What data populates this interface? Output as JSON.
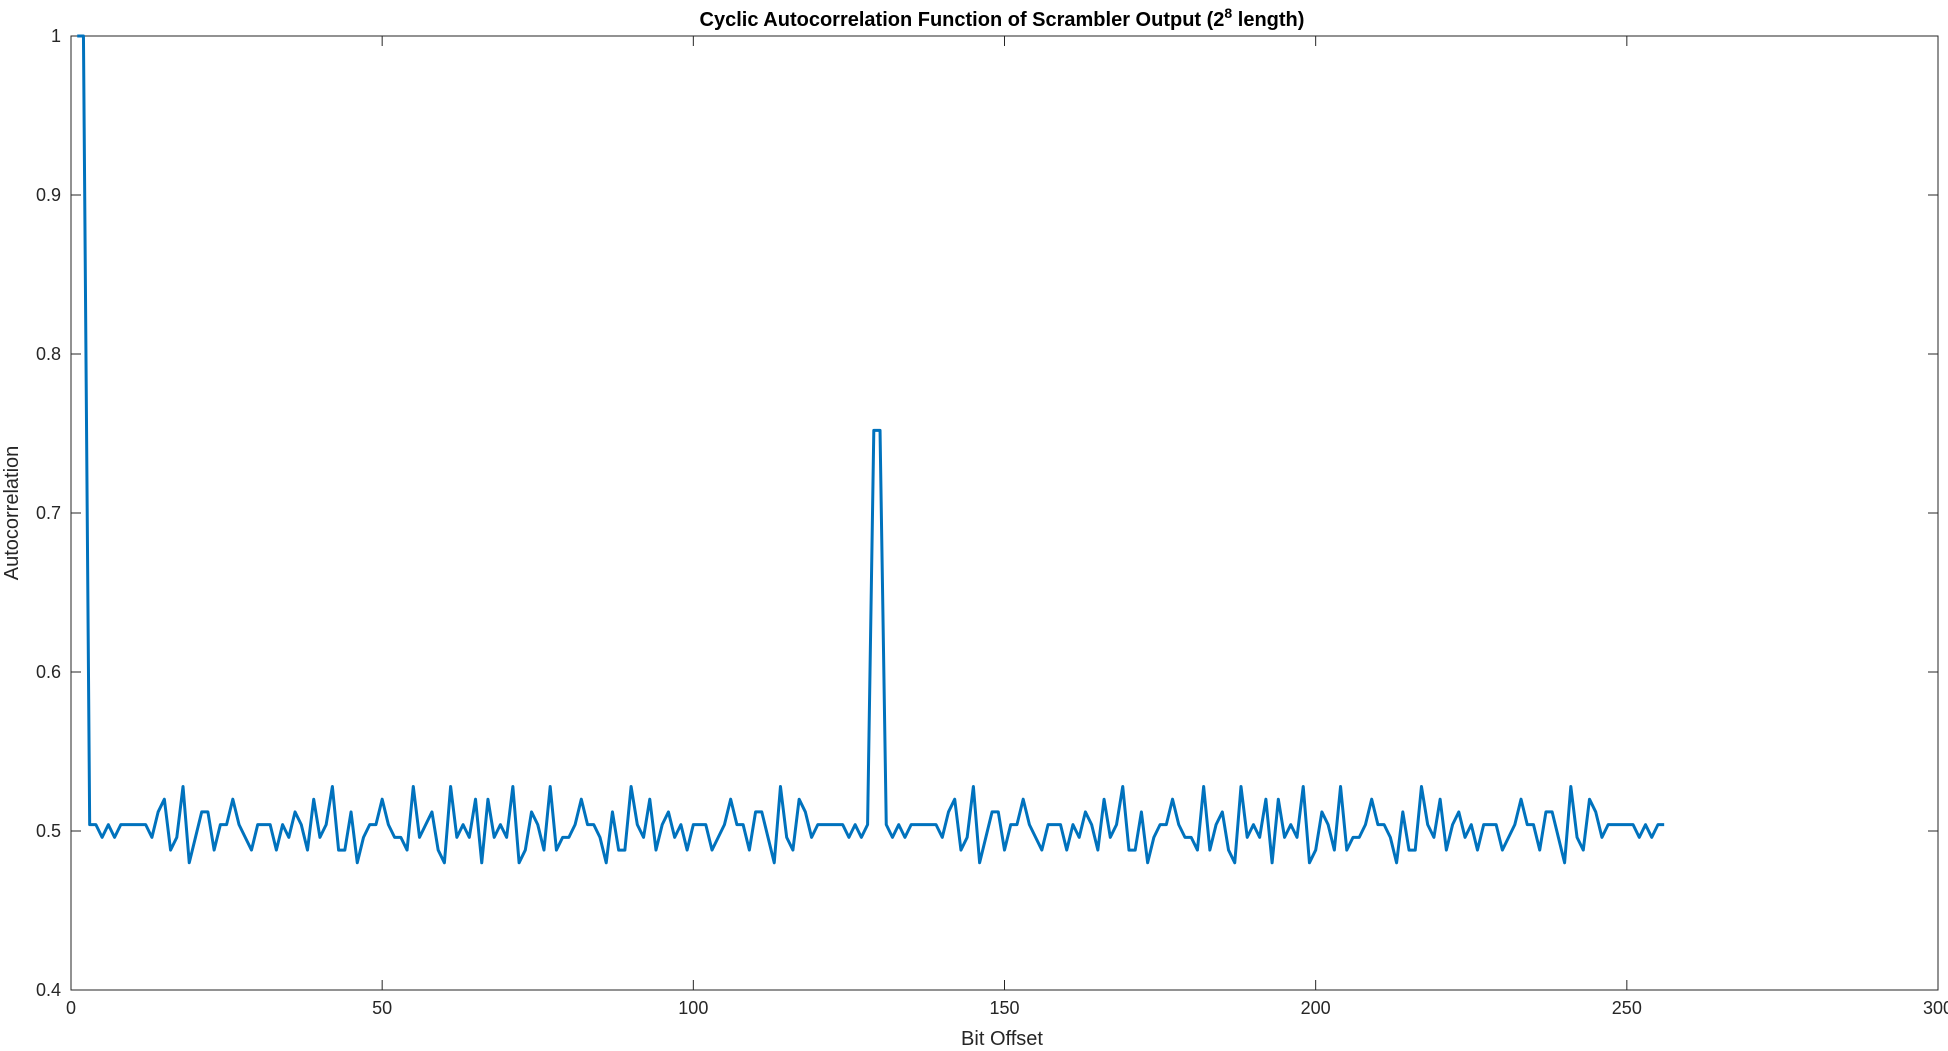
{
  "chart_data": {
    "type": "line",
    "title_parts": [
      "Cyclic Autocorrelation Function of Scrambler Output (2",
      "8",
      " length)"
    ],
    "xlabel": "Bit Offset",
    "ylabel": "Autocorrelation",
    "xlim": [
      0,
      300
    ],
    "ylim": [
      0.4,
      1
    ],
    "xticks": [
      0,
      50,
      100,
      150,
      200,
      250,
      300
    ],
    "yticks": [
      0.4,
      0.5,
      0.6,
      0.7,
      0.8,
      0.9,
      1
    ],
    "ytick_labels": [
      "0.4",
      "0.5",
      "0.6",
      "0.7",
      "0.8",
      "0.9",
      "1"
    ],
    "grid": false,
    "line_color": "#0072BD",
    "x_start": 1,
    "x_step": 1,
    "y": [
      1,
      1,
      0.504,
      0.504,
      0.496,
      0.504,
      0.496,
      0.504,
      0.504,
      0.504,
      0.504,
      0.504,
      0.496,
      0.512,
      0.52,
      0.488,
      0.496,
      0.528,
      0.48,
      0.496,
      0.512,
      0.512,
      0.488,
      0.504,
      0.504,
      0.52,
      0.504,
      0.496,
      0.488,
      0.504,
      0.504,
      0.504,
      0.488,
      0.504,
      0.496,
      0.512,
      0.504,
      0.488,
      0.52,
      0.496,
      0.504,
      0.528,
      0.488,
      0.488,
      0.512,
      0.48,
      0.496,
      0.504,
      0.504,
      0.52,
      0.504,
      0.496,
      0.496,
      0.488,
      0.528,
      0.496,
      0.504,
      0.512,
      0.488,
      0.48,
      0.528,
      0.496,
      0.504,
      0.496,
      0.52,
      0.48,
      0.52,
      0.496,
      0.504,
      0.496,
      0.528,
      0.48,
      0.488,
      0.512,
      0.504,
      0.488,
      0.528,
      0.488,
      0.496,
      0.496,
      0.504,
      0.52,
      0.504,
      0.504,
      0.496,
      0.48,
      0.512,
      0.488,
      0.488,
      0.528,
      0.504,
      0.496,
      0.52,
      0.488,
      0.504,
      0.512,
      0.496,
      0.504,
      0.488,
      0.504,
      0.504,
      0.504,
      0.488,
      0.496,
      0.504,
      0.52,
      0.504,
      0.504,
      0.488,
      0.512,
      0.512,
      0.496,
      0.48,
      0.528,
      0.496,
      0.488,
      0.52,
      0.512,
      0.496,
      0.504,
      0.504,
      0.504,
      0.504,
      0.504,
      0.496,
      0.504,
      0.496,
      0.504,
      0.752,
      0.752,
      0.504,
      0.496,
      0.504,
      0.496,
      0.504,
      0.504,
      0.504,
      0.504,
      0.504,
      0.496,
      0.512,
      0.52,
      0.488,
      0.496,
      0.528,
      0.48,
      0.496,
      0.512,
      0.512,
      0.488,
      0.504,
      0.504,
      0.52,
      0.504,
      0.496,
      0.488,
      0.504,
      0.504,
      0.504,
      0.488,
      0.504,
      0.496,
      0.512,
      0.504,
      0.488,
      0.52,
      0.496,
      0.504,
      0.528,
      0.488,
      0.488,
      0.512,
      0.48,
      0.496,
      0.504,
      0.504,
      0.52,
      0.504,
      0.496,
      0.496,
      0.488,
      0.528,
      0.488,
      0.504,
      0.512,
      0.488,
      0.48,
      0.528,
      0.496,
      0.504,
      0.496,
      0.52,
      0.48,
      0.52,
      0.496,
      0.504,
      0.496,
      0.528,
      0.48,
      0.488,
      0.512,
      0.504,
      0.488,
      0.528,
      0.488,
      0.496,
      0.496,
      0.504,
      0.52,
      0.504,
      0.504,
      0.496,
      0.48,
      0.512,
      0.488,
      0.488,
      0.528,
      0.504,
      0.496,
      0.52,
      0.488,
      0.504,
      0.512,
      0.496,
      0.504,
      0.488,
      0.504,
      0.504,
      0.504,
      0.488,
      0.496,
      0.504,
      0.52,
      0.504,
      0.504,
      0.488,
      0.512,
      0.512,
      0.496,
      0.48,
      0.528,
      0.496,
      0.488,
      0.52,
      0.512,
      0.496,
      0.504,
      0.504,
      0.504,
      0.504,
      0.504,
      0.496,
      0.504,
      0.496,
      0.504,
      0.504
    ]
  }
}
